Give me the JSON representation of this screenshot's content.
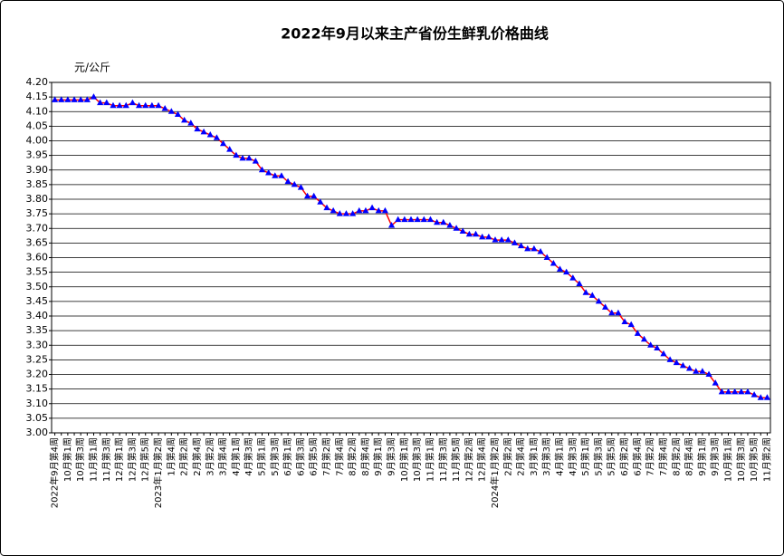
{
  "chart_data": {
    "type": "line",
    "title": "2022年9月以来主产省份生鲜乳价格曲线",
    "y_unit": "元/公斤",
    "color": "#ff0000",
    "marker_color": "#0000ff",
    "grid": true,
    "categories": [
      "2022年9月第4周",
      null,
      "10月第1周",
      null,
      "10月第3周",
      null,
      "11月第1周",
      null,
      "11月第3周",
      null,
      "12月第1周",
      null,
      "12月第3周",
      null,
      "12月第5周",
      null,
      "2023年1月第2周",
      null,
      "1月第4周",
      null,
      "2月第2周",
      null,
      "2月第4周",
      null,
      "3月第2周",
      null,
      "3月第4周",
      null,
      "4月第1周",
      null,
      "4月第3周",
      null,
      "5月第1周",
      null,
      "5月第3周",
      null,
      "6月第1周",
      null,
      "6月第3周",
      null,
      "6月第5周",
      null,
      "7月第2周",
      null,
      "7月第4周",
      null,
      "8月第2周",
      null,
      "8月第4周",
      null,
      "9月第1周",
      null,
      "9月第3周",
      null,
      "10月第1周",
      null,
      "10月第3周",
      null,
      "11月第1周",
      null,
      "11月第3周",
      null,
      "11月第5周",
      null,
      "12月第2周",
      null,
      "12月第4周",
      null,
      "2024年1月第2周",
      null,
      "2月第2周",
      null,
      "2月第4周",
      null,
      "3月第1周",
      null,
      "3月第3周",
      null,
      "4月第1周",
      null,
      "4月第3周",
      null,
      "5月第1周",
      null,
      "5月第3周",
      null,
      "5月第5周",
      null,
      "6月第2周",
      null,
      "6月第4周",
      null,
      "7月第2周",
      null,
      "7月第4周",
      null,
      "8月第2周",
      null,
      "8月第4周",
      null,
      "9月第1周",
      null,
      "9月第3周",
      null,
      "10月第1周",
      null,
      "10月第3周",
      null,
      "10月第5周",
      null,
      "11月第2周"
    ],
    "values": [
      4.14,
      4.14,
      4.14,
      4.14,
      4.14,
      4.14,
      4.15,
      4.13,
      4.13,
      4.12,
      4.12,
      4.12,
      4.13,
      4.12,
      4.12,
      4.12,
      4.12,
      4.11,
      4.1,
      4.09,
      4.07,
      4.06,
      4.04,
      4.03,
      4.02,
      4.01,
      3.99,
      3.97,
      3.95,
      3.94,
      3.94,
      3.93,
      3.9,
      3.89,
      3.88,
      3.88,
      3.86,
      3.85,
      3.84,
      3.81,
      3.81,
      3.79,
      3.77,
      3.76,
      3.75,
      3.75,
      3.75,
      3.76,
      3.76,
      3.77,
      3.76,
      3.76,
      3.71,
      3.73,
      3.73,
      3.73,
      3.73,
      3.73,
      3.73,
      3.72,
      3.72,
      3.71,
      3.7,
      3.69,
      3.68,
      3.68,
      3.67,
      3.67,
      3.66,
      3.66,
      3.66,
      3.65,
      3.64,
      3.63,
      3.63,
      3.62,
      3.6,
      3.58,
      3.56,
      3.55,
      3.53,
      3.51,
      3.48,
      3.47,
      3.45,
      3.43,
      3.41,
      3.41,
      3.38,
      3.37,
      3.34,
      3.32,
      3.3,
      3.29,
      3.27,
      3.25,
      3.24,
      3.23,
      3.22,
      3.21,
      3.21,
      3.2,
      3.17,
      3.14,
      3.14,
      3.14,
      3.14,
      3.14,
      3.13,
      3.12,
      3.12
    ],
    "ylim": [
      3,
      4.2
    ],
    "yticks": [
      {
        "value": 3,
        "label": "3.00"
      },
      {
        "value": 3.05,
        "label": "3.05"
      },
      {
        "value": 3.1,
        "label": "3.10"
      },
      {
        "value": 3.15,
        "label": "3.15"
      },
      {
        "value": 3.2,
        "label": "3.20"
      },
      {
        "value": 3.25,
        "label": "3.25"
      },
      {
        "value": 3.3,
        "label": "3.30"
      },
      {
        "value": 3.35,
        "label": "3.35"
      },
      {
        "value": 3.4,
        "label": "3.40"
      },
      {
        "value": 3.45,
        "label": "3.45"
      },
      {
        "value": 3.5,
        "label": "3.50"
      },
      {
        "value": 3.55,
        "label": "3.55"
      },
      {
        "value": 3.6,
        "label": "3.60"
      },
      {
        "value": 3.65,
        "label": "3.65"
      },
      {
        "value": 3.7,
        "label": "3.70"
      },
      {
        "value": 3.75,
        "label": "3.75"
      },
      {
        "value": 3.8,
        "label": "3.80"
      },
      {
        "value": 3.85,
        "label": "3.85"
      },
      {
        "value": 3.9,
        "label": "3.90"
      },
      {
        "value": 3.95,
        "label": "3.95"
      },
      {
        "value": 4,
        "label": "4.00"
      },
      {
        "value": 4.05,
        "label": "4.05"
      },
      {
        "value": 4.1,
        "label": "4.10"
      },
      {
        "value": 4.15,
        "label": "4.15"
      },
      {
        "value": 4.2,
        "label": "4.20"
      }
    ]
  }
}
